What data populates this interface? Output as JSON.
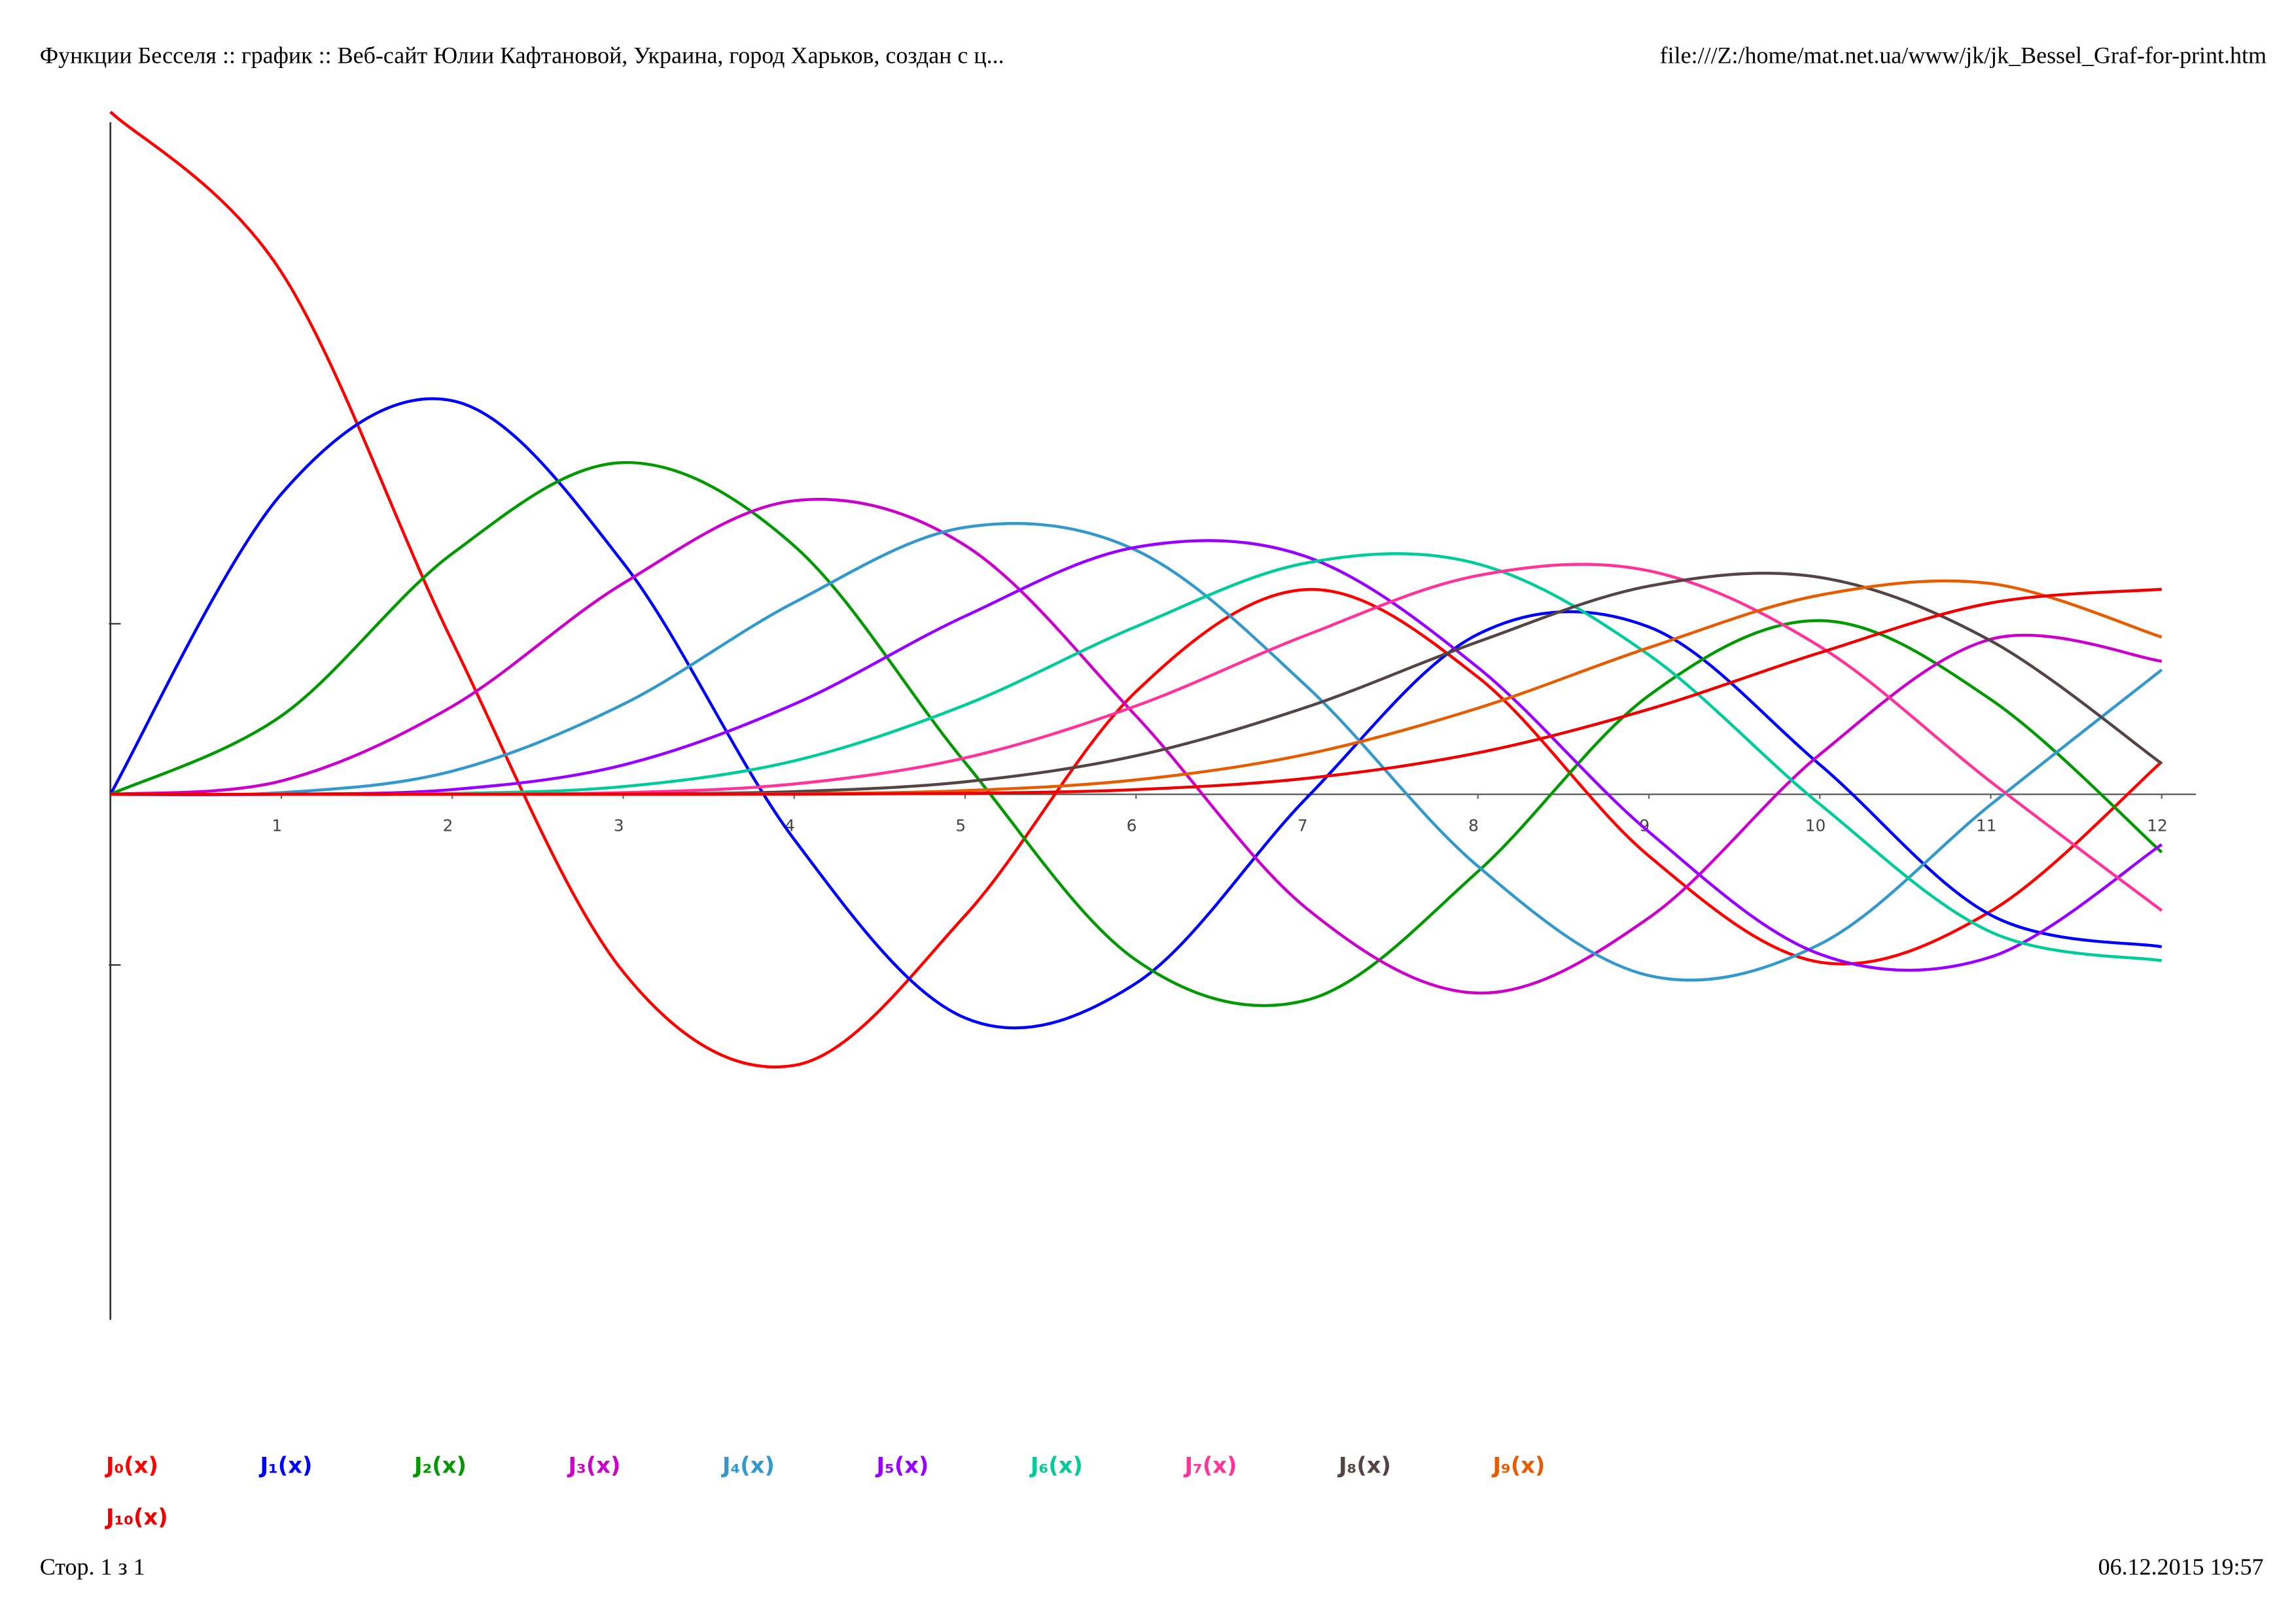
{
  "page_header": {
    "title": "Функции Бесселя :: график :: Веб-сайт Юлии Кафтановой, Украина, город Харьков, создан с ц...",
    "url": "file:///Z:/home/mat.net.ua/www/jk/jk_Bessel_Graf-for-print.htm"
  },
  "page_footer": {
    "page": "Стор. 1 з 1",
    "date": "06.12.2015 19:57"
  },
  "chart_data": {
    "type": "line",
    "x": [
      0,
      1,
      2,
      3,
      4,
      5,
      6,
      7,
      8,
      9,
      10,
      11,
      12
    ],
    "xlim": [
      0,
      12.2
    ],
    "xticks": [
      1,
      2,
      3,
      4,
      5,
      6,
      7,
      8,
      9,
      10,
      11,
      12
    ],
    "ylim": [
      -0.77,
      1
    ],
    "yticks": [
      -0.25,
      0.25
    ],
    "grid": false,
    "series": [
      {
        "name": "J₀(x)",
        "color": "#ff0000",
        "values": [
          1,
          0.7652,
          0.2239,
          -0.2601,
          -0.3971,
          -0.1776,
          0.1506,
          0.3001,
          0.1717,
          -0.0903,
          -0.2459,
          -0.1712,
          0.0477
        ]
      },
      {
        "name": "J₁(x)",
        "color": "#0000ff",
        "values": [
          0,
          0.4401,
          0.5767,
          0.3391,
          -0.066,
          -0.3276,
          -0.2767,
          -0.0047,
          0.2346,
          0.2453,
          0.0435,
          -0.1768,
          -0.2234
        ]
      },
      {
        "name": "J₂(x)",
        "color": "#009900",
        "values": [
          0,
          0.1149,
          0.3528,
          0.4861,
          0.3641,
          0.0466,
          -0.2429,
          -0.3014,
          -0.113,
          0.1448,
          0.2546,
          0.139,
          -0.0849
        ]
      },
      {
        "name": "J₃(x)",
        "color": "#cc00cc",
        "values": [
          0,
          0.0196,
          0.1289,
          0.3091,
          0.4302,
          0.3648,
          0.1148,
          -0.1676,
          -0.2911,
          -0.1809,
          0.0584,
          0.2273,
          0.1951
        ]
      },
      {
        "name": "J₄(x)",
        "color": "#3399cc",
        "values": [
          0,
          0.0025,
          0.034,
          0.132,
          0.2811,
          0.3912,
          0.3576,
          0.1578,
          -0.1054,
          -0.2655,
          -0.2196,
          -0.015,
          0.1825
        ]
      },
      {
        "name": "J₅(x)",
        "color": "#9900ff",
        "values": [
          0,
          0.0002,
          0.007,
          0.043,
          0.1321,
          0.2611,
          0.3621,
          0.3479,
          0.1858,
          -0.055,
          -0.2341,
          -0.2383,
          -0.0735
        ]
      },
      {
        "name": "J₆(x)",
        "color": "#00cc99",
        "values": [
          0,
          0,
          0.0012,
          0.0114,
          0.0491,
          0.131,
          0.2458,
          0.3392,
          0.3376,
          0.2043,
          -0.0145,
          -0.2016,
          -0.2437
        ]
      },
      {
        "name": "J₇(x)",
        "color": "#ff3399",
        "values": [
          0,
          0,
          0.0002,
          0.0025,
          0.0152,
          0.0534,
          0.1296,
          0.2336,
          0.3206,
          0.3275,
          0.2167,
          0.0184,
          -0.1703
        ]
      },
      {
        "name": "J₈(x)",
        "color": "#554444",
        "values": [
          0,
          0,
          0,
          0.0005,
          0.004,
          0.0184,
          0.0565,
          0.128,
          0.2235,
          0.3051,
          0.3179,
          0.225,
          0.0451
        ]
      },
      {
        "name": "J₉(x)",
        "color": "#e65c00",
        "values": [
          0,
          0,
          0,
          0.0001,
          0.0009,
          0.0055,
          0.0212,
          0.0589,
          0.1263,
          0.2149,
          0.2919,
          0.3089,
          0.2304
        ]
      },
      {
        "name": "J₁₀(x)",
        "color": "#ee0000",
        "values": [
          0,
          0,
          0,
          0,
          0.0002,
          0.0015,
          0.007,
          0.0235,
          0.0608,
          0.1247,
          0.2075,
          0.2804,
          0.3005
        ]
      }
    ]
  }
}
